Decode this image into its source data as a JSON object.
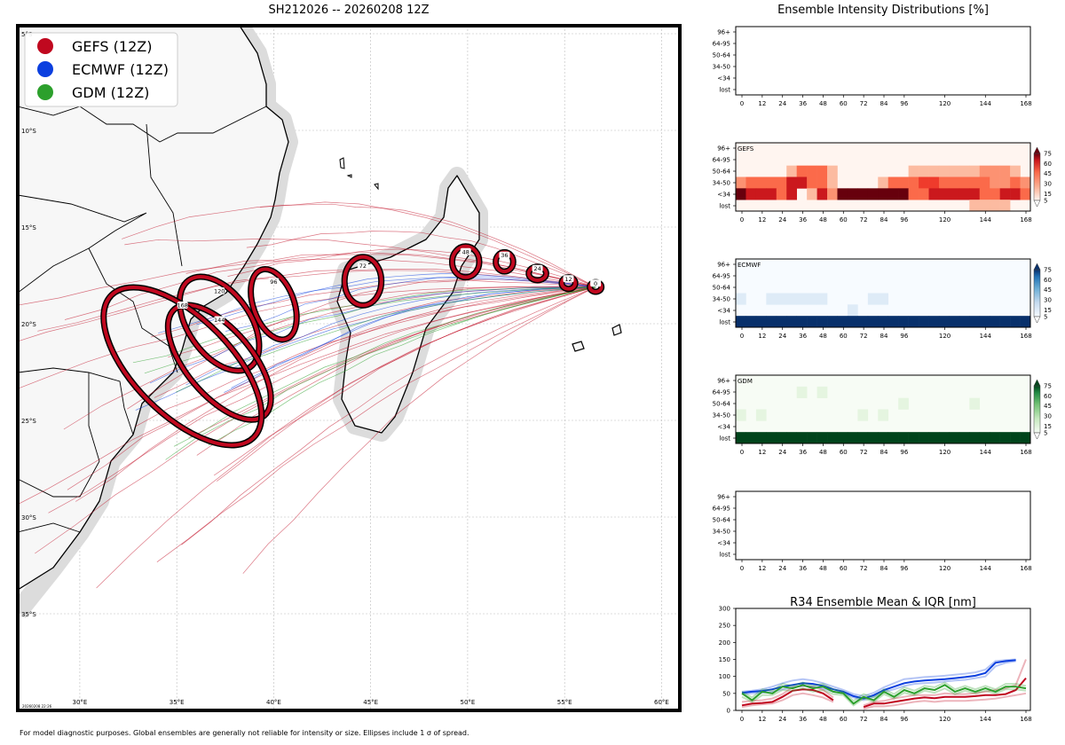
{
  "map": {
    "title": "SH212026 -- 20260208 12Z",
    "stamp": "20260208 22:26",
    "lat_labels": [
      "5°S",
      "10°S",
      "15°S",
      "20°S",
      "25°S",
      "30°S",
      "35°S"
    ],
    "lon_labels": [
      "30°E",
      "35°E",
      "40°E",
      "45°E",
      "50°E",
      "55°E",
      "60°E"
    ],
    "legend": [
      {
        "label": "GEFS (12Z)",
        "color": "#c0081f"
      },
      {
        "label": "ECMWF (12Z)",
        "color": "#0b3fdf"
      },
      {
        "label": "GDM (12Z)",
        "color": "#2ca02c"
      }
    ],
    "ellipses": [
      {
        "hour": "0",
        "lon": 56.6,
        "lat": -18.1,
        "a_lon": 0.3,
        "a_lat": 0.25,
        "angle": 0
      },
      {
        "hour": "12",
        "lon": 55.2,
        "lat": -17.9,
        "a_lon": 0.35,
        "a_lat": 0.3,
        "angle": 0
      },
      {
        "hour": "24",
        "lon": 53.6,
        "lat": -17.4,
        "a_lon": 0.45,
        "a_lat": 0.35,
        "angle": 0
      },
      {
        "hour": "36",
        "lon": 51.9,
        "lat": -16.8,
        "a_lon": 0.45,
        "a_lat": 0.5,
        "angle": 0
      },
      {
        "hour": "48",
        "lon": 49.9,
        "lat": -16.8,
        "a_lon": 0.7,
        "a_lat": 0.8,
        "angle": 0
      },
      {
        "hour": "72",
        "lon": 44.6,
        "lat": -17.8,
        "a_lon": 0.95,
        "a_lat": 1.25,
        "angle": 0
      },
      {
        "hour": "96",
        "lon": 40.0,
        "lat": -19.0,
        "a_lon": 1.05,
        "a_lat": 1.9,
        "angle": -20
      },
      {
        "hour": "120",
        "lon": 37.2,
        "lat": -20.0,
        "a_lon": 1.6,
        "a_lat": 2.75,
        "angle": -35
      },
      {
        "hour": "144",
        "lon": 37.2,
        "lat": -22.0,
        "a_lon": 1.7,
        "a_lat": 3.6,
        "angle": -40
      },
      {
        "hour": "168",
        "lon": 35.3,
        "lat": -22.2,
        "a_lon": 2.5,
        "a_lat": 5.2,
        "angle": -45
      }
    ],
    "footer": "For model diagnostic purposes. Global ensembles are generally not reliable for intensity or size. Ellipses include 1 σ of spread."
  },
  "intensity": {
    "title": "Ensemble Intensity Distributions [%]",
    "rows": [
      "96+",
      "64-95",
      "50-64",
      "34-50",
      "<34",
      "lost"
    ],
    "hours": [
      0,
      12,
      24,
      36,
      48,
      60,
      72,
      84,
      96,
      120,
      144,
      168
    ],
    "colorbar_ticks": [
      5,
      15,
      30,
      45,
      60,
      75
    ],
    "panels": [
      {
        "name": "",
        "empty": true
      },
      {
        "name": "GEFS",
        "cmap": "red",
        "grid": [
          [
            0,
            0,
            0,
            0,
            0,
            0,
            0,
            0,
            0,
            0,
            0,
            0,
            0,
            0,
            0,
            0,
            0,
            0,
            0,
            0,
            0,
            0,
            0,
            0,
            0,
            0,
            0,
            0,
            0
          ],
          [
            0,
            0,
            0,
            0,
            0,
            0,
            0,
            0,
            0,
            0,
            0,
            0,
            0,
            0,
            0,
            0,
            0,
            0,
            0,
            0,
            0,
            0,
            0,
            0,
            0,
            0,
            0,
            0,
            0
          ],
          [
            0,
            0,
            0,
            0,
            0,
            5,
            40,
            40,
            40,
            5,
            0,
            0,
            0,
            0,
            0,
            0,
            0,
            8,
            8,
            8,
            8,
            8,
            8,
            8,
            20,
            20,
            20,
            5,
            0
          ],
          [
            20,
            40,
            40,
            40,
            40,
            60,
            70,
            40,
            30,
            5,
            0,
            0,
            0,
            0,
            8,
            40,
            40,
            40,
            50,
            50,
            40,
            40,
            40,
            40,
            40,
            20,
            20,
            40,
            20
          ],
          [
            90,
            70,
            70,
            70,
            40,
            60,
            0,
            10,
            70,
            20,
            80,
            95,
            95,
            95,
            95,
            80,
            80,
            40,
            40,
            60,
            60,
            60,
            60,
            60,
            40,
            40,
            60,
            60,
            40
          ],
          [
            0,
            0,
            0,
            0,
            0,
            0,
            0,
            0,
            0,
            0,
            0,
            0,
            0,
            0,
            0,
            0,
            0,
            0,
            0,
            0,
            0,
            0,
            0,
            5,
            5,
            5,
            5,
            0,
            0
          ]
        ]
      },
      {
        "name": "ECMWF",
        "cmap": "blue",
        "grid": [
          [
            0,
            0,
            0,
            0,
            0,
            0,
            0,
            0,
            0,
            0,
            0,
            0,
            0,
            0,
            0,
            0,
            0,
            0,
            0,
            0,
            0,
            0,
            0,
            0,
            0,
            0,
            0,
            0,
            0
          ],
          [
            0,
            0,
            0,
            0,
            0,
            0,
            0,
            0,
            0,
            0,
            0,
            0,
            0,
            0,
            0,
            0,
            0,
            0,
            0,
            0,
            0,
            0,
            0,
            0,
            0,
            0,
            0,
            0,
            0
          ],
          [
            0,
            0,
            0,
            0,
            0,
            0,
            0,
            0,
            0,
            0,
            0,
            0,
            0,
            0,
            0,
            0,
            0,
            0,
            0,
            0,
            0,
            0,
            0,
            0,
            0,
            0,
            0,
            0,
            0
          ],
          [
            12,
            0,
            0,
            12,
            12,
            12,
            12,
            12,
            12,
            0,
            0,
            0,
            0,
            12,
            12,
            0,
            0,
            0,
            0,
            0,
            0,
            0,
            0,
            0,
            0,
            0,
            0,
            0,
            0
          ],
          [
            0,
            0,
            0,
            0,
            0,
            0,
            0,
            0,
            0,
            0,
            0,
            12,
            0,
            0,
            0,
            0,
            0,
            0,
            0,
            0,
            0,
            0,
            0,
            0,
            0,
            0,
            0,
            0,
            0
          ],
          [
            100,
            100,
            100,
            100,
            100,
            100,
            100,
            100,
            100,
            100,
            100,
            100,
            100,
            100,
            100,
            100,
            100,
            100,
            100,
            100,
            100,
            100,
            100,
            100,
            100,
            100,
            100,
            100,
            100
          ]
        ]
      },
      {
        "name": "GDM",
        "cmap": "green",
        "grid": [
          [
            0,
            0,
            0,
            0,
            0,
            0,
            0,
            0,
            0,
            0,
            0,
            0,
            0,
            0,
            0,
            0,
            0,
            0,
            0,
            0,
            0,
            0,
            0,
            0,
            0,
            0,
            0,
            0,
            0
          ],
          [
            0,
            0,
            0,
            0,
            0,
            0,
            12,
            0,
            12,
            0,
            0,
            0,
            0,
            0,
            0,
            0,
            0,
            0,
            0,
            0,
            0,
            0,
            0,
            0,
            0,
            0,
            0,
            0,
            0
          ],
          [
            0,
            0,
            0,
            0,
            0,
            0,
            0,
            0,
            0,
            0,
            0,
            0,
            0,
            0,
            0,
            0,
            12,
            0,
            0,
            0,
            0,
            0,
            0,
            12,
            0,
            0,
            0,
            0,
            0
          ],
          [
            12,
            0,
            12,
            0,
            0,
            0,
            0,
            0,
            0,
            0,
            0,
            0,
            12,
            0,
            12,
            0,
            0,
            0,
            0,
            0,
            0,
            0,
            0,
            0,
            0,
            0,
            0,
            0,
            0
          ],
          [
            0,
            0,
            0,
            0,
            0,
            0,
            0,
            0,
            0,
            0,
            0,
            0,
            0,
            0,
            0,
            0,
            0,
            0,
            0,
            0,
            0,
            0,
            0,
            0,
            0,
            0,
            0,
            0,
            0
          ],
          [
            100,
            100,
            100,
            100,
            100,
            100,
            100,
            100,
            100,
            100,
            100,
            100,
            100,
            100,
            100,
            100,
            100,
            100,
            100,
            100,
            100,
            100,
            100,
            100,
            100,
            100,
            100,
            100,
            100
          ]
        ]
      },
      {
        "name": "",
        "empty": true
      }
    ]
  },
  "chart_data": {
    "type": "line",
    "title": "R34 Ensemble Mean & IQR [nm]",
    "x": [
      0,
      6,
      12,
      18,
      24,
      30,
      36,
      42,
      48,
      54,
      60,
      66,
      72,
      78,
      84,
      90,
      96,
      102,
      108,
      114,
      120,
      126,
      132,
      138,
      144,
      150,
      156,
      162,
      168
    ],
    "xticks": [
      0,
      12,
      24,
      36,
      48,
      60,
      72,
      84,
      96,
      120,
      144,
      168
    ],
    "yticks": [
      0,
      50,
      100,
      150,
      200,
      250,
      300
    ],
    "ylim": [
      0,
      300
    ],
    "series": [
      {
        "color": "#c0081f",
        "values": [
          15,
          20,
          22,
          25,
          40,
          58,
          62,
          60,
          50,
          30,
          null,
          null,
          10,
          20,
          20,
          25,
          30,
          35,
          38,
          36,
          40,
          40,
          40,
          42,
          45,
          45,
          48,
          60,
          95
        ],
        "q1": [
          10,
          15,
          18,
          20,
          30,
          45,
          50,
          45,
          38,
          25,
          null,
          null,
          5,
          12,
          12,
          15,
          20,
          25,
          28,
          25,
          28,
          28,
          28,
          30,
          32,
          35,
          40,
          45,
          50
        ],
        "q3": [
          25,
          28,
          30,
          35,
          48,
          68,
          72,
          70,
          60,
          38,
          null,
          null,
          15,
          25,
          28,
          35,
          40,
          45,
          45,
          45,
          50,
          48,
          48,
          50,
          55,
          60,
          65,
          75,
          150
        ]
      },
      {
        "color": "#0b3fdf",
        "values": [
          52,
          55,
          57,
          62,
          70,
          75,
          80,
          78,
          72,
          62,
          55,
          42,
          35,
          45,
          60,
          70,
          80,
          85,
          88,
          90,
          92,
          95,
          98,
          102,
          110,
          140,
          145,
          148,
          null
        ],
        "q1": [
          48,
          50,
          52,
          55,
          62,
          68,
          72,
          70,
          65,
          55,
          50,
          38,
          30,
          40,
          55,
          62,
          72,
          78,
          80,
          82,
          85,
          88,
          90,
          95,
          100,
          130,
          140,
          145,
          null
        ],
        "q3": [
          55,
          58,
          62,
          70,
          80,
          88,
          92,
          88,
          80,
          70,
          60,
          48,
          42,
          52,
          68,
          80,
          92,
          95,
          98,
          100,
          102,
          105,
          108,
          112,
          120,
          145,
          148,
          150,
          null
        ]
      },
      {
        "color": "#2ca02c",
        "values": [
          50,
          30,
          55,
          50,
          70,
          65,
          75,
          65,
          70,
          55,
          50,
          20,
          40,
          30,
          55,
          40,
          60,
          50,
          65,
          60,
          75,
          55,
          65,
          55,
          65,
          55,
          70,
          70,
          65
        ],
        "q1": [
          40,
          25,
          45,
          45,
          60,
          58,
          65,
          55,
          60,
          48,
          45,
          15,
          35,
          25,
          48,
          35,
          52,
          45,
          58,
          52,
          65,
          48,
          58,
          50,
          58,
          50,
          62,
          62,
          58
        ],
        "q3": [
          55,
          38,
          62,
          58,
          78,
          72,
          82,
          72,
          78,
          62,
          55,
          28,
          48,
          38,
          62,
          48,
          68,
          58,
          72,
          68,
          82,
          62,
          72,
          62,
          72,
          62,
          78,
          78,
          72
        ]
      }
    ]
  }
}
